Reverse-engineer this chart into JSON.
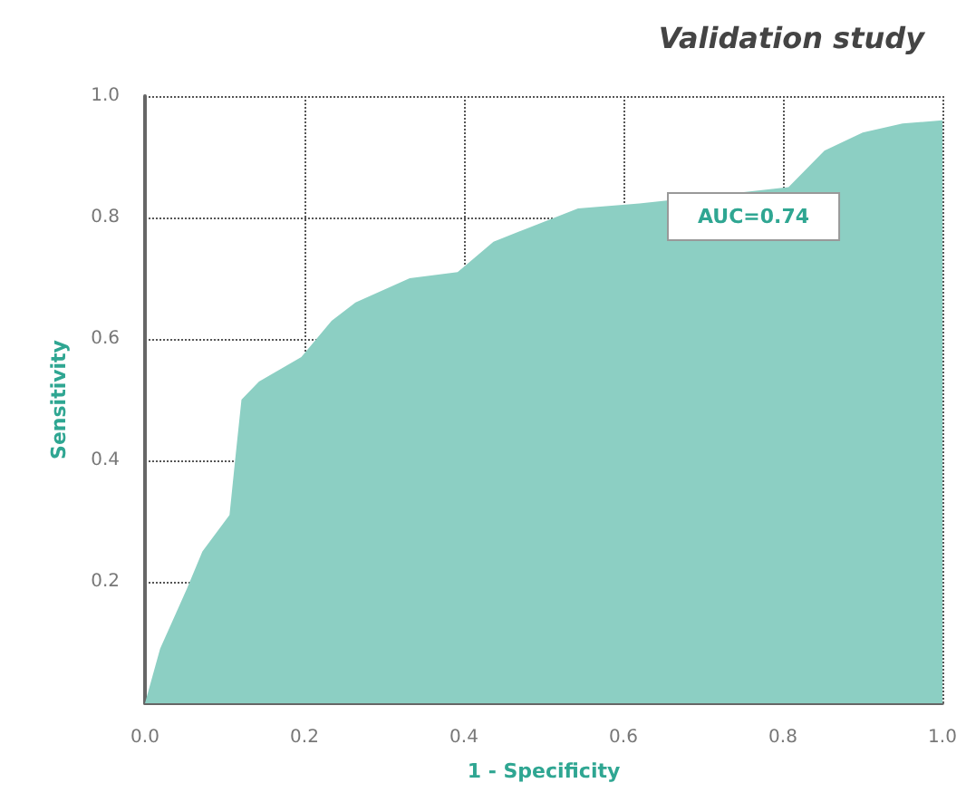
{
  "chart_data": {
    "type": "area",
    "title": "Validation study",
    "xlabel": "1 - Specificity",
    "ylabel": "Sensitivity",
    "x": [
      0,
      0.019,
      0.053,
      0.072,
      0.106,
      0.113,
      0.121,
      0.143,
      0.196,
      0.234,
      0.264,
      0.332,
      0.392,
      0.437,
      0.475,
      0.543,
      0.62,
      0.679,
      0.75,
      0.807,
      0.852,
      0.9,
      0.95,
      1.0
    ],
    "series": [
      {
        "color": "#8ccfc3",
        "values": [
          0,
          0.09,
          0.19,
          0.25,
          0.31,
          0.4,
          0.5,
          0.53,
          0.57,
          0.63,
          0.66,
          0.7,
          0.71,
          0.76,
          0.78,
          0.815,
          0.823,
          null,
          null,
          0.85,
          0.91,
          0.94,
          0.955,
          0.96
        ]
      }
    ],
    "xlim": [
      0,
      1
    ],
    "ylim": [
      0,
      1
    ],
    "xticks": [
      {
        "value": 0,
        "label": "0.0"
      },
      0.2,
      0.4,
      0.6,
      0.8,
      {
        "value": 1,
        "label": "1.0"
      }
    ],
    "yticks": [
      {
        "value": 0,
        "label": null
      },
      0.2,
      0.4,
      0.6,
      0.8,
      {
        "value": 1,
        "label": "1.0"
      }
    ],
    "annotations": [
      "AUC=0.74"
    ],
    "grid": true,
    "marker": "none"
  }
}
